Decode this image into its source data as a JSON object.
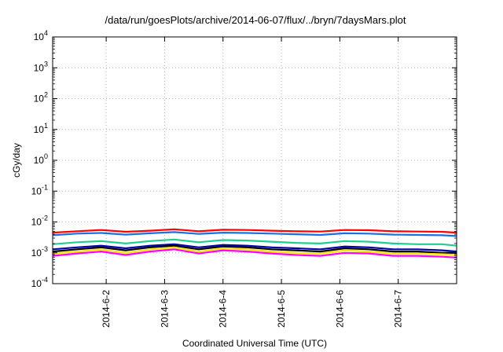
{
  "chart_data": {
    "type": "line",
    "title": "/data/run/goesPlots/archive/2014-06-07/flux/../bryn/7daysMars.plot",
    "xlabel": "Coordinated Universal Time (UTC)",
    "ylabel": "cGy/day",
    "yscale": "log",
    "ylim": [
      0.0001,
      10000
    ],
    "y_ticks": [
      {
        "base": "10",
        "exp": "-4",
        "value": 0.0001
      },
      {
        "base": "10",
        "exp": "-3",
        "value": 0.001
      },
      {
        "base": "10",
        "exp": "-2",
        "value": 0.01
      },
      {
        "base": "10",
        "exp": "-1",
        "value": 0.1
      },
      {
        "base": "10",
        "exp": "0",
        "value": 1
      },
      {
        "base": "10",
        "exp": "1",
        "value": 10
      },
      {
        "base": "10",
        "exp": "2",
        "value": 100
      },
      {
        "base": "10",
        "exp": "3",
        "value": 1000
      },
      {
        "base": "10",
        "exp": "4",
        "value": 10000
      }
    ],
    "xlim": [
      "2014-06-01 02:00",
      "2014-06-08 00:00"
    ],
    "x_ticks": [
      {
        "label": "2014-6-2",
        "value": "2014-06-02 00:00"
      },
      {
        "label": "2014-6-3",
        "value": "2014-06-03 00:00"
      },
      {
        "label": "2014-6-4",
        "value": "2014-06-04 00:00"
      },
      {
        "label": "2014-6-5",
        "value": "2014-06-05 00:00"
      },
      {
        "label": "2014-6-6",
        "value": "2014-06-06 00:00"
      },
      {
        "label": "2014-6-7",
        "value": "2014-06-07 00:00"
      }
    ],
    "grid": true,
    "x": [
      "2014-06-01 02:00",
      "2014-06-01 12:00",
      "2014-06-01 22:00",
      "2014-06-02 08:00",
      "2014-06-02 18:00",
      "2014-06-03 04:00",
      "2014-06-03 14:00",
      "2014-06-04 00:00",
      "2014-06-04 10:00",
      "2014-06-04 20:00",
      "2014-06-05 06:00",
      "2014-06-05 16:00",
      "2014-06-06 02:00",
      "2014-06-06 12:00",
      "2014-06-06 22:00",
      "2014-06-07 08:00",
      "2014-06-07 18:00",
      "2014-06-08 00:00"
    ],
    "series": [
      {
        "color": "#ff0000",
        "values": [
          0.0045,
          0.005,
          0.0055,
          0.0048,
          0.0052,
          0.0058,
          0.005,
          0.0056,
          0.0055,
          0.0052,
          0.005,
          0.0049,
          0.0055,
          0.0054,
          0.005,
          0.0049,
          0.0048,
          0.0045
        ]
      },
      {
        "color": "#1f6fe0",
        "values": [
          0.0037,
          0.0042,
          0.0044,
          0.0039,
          0.0043,
          0.0047,
          0.0041,
          0.0045,
          0.0044,
          0.0042,
          0.004,
          0.0038,
          0.0043,
          0.0042,
          0.0039,
          0.0038,
          0.0037,
          0.0035
        ]
      },
      {
        "color": "#1fcf8f",
        "values": [
          0.0019,
          0.0022,
          0.0024,
          0.002,
          0.0024,
          0.0027,
          0.0022,
          0.0026,
          0.0025,
          0.0023,
          0.0021,
          0.002,
          0.0024,
          0.0023,
          0.002,
          0.0019,
          0.0019,
          0.0017
        ]
      },
      {
        "color": "#0000aa",
        "values": [
          0.0013,
          0.0015,
          0.0017,
          0.0014,
          0.0017,
          0.0019,
          0.0015,
          0.0018,
          0.0017,
          0.0015,
          0.0014,
          0.0013,
          0.0016,
          0.0015,
          0.0013,
          0.0013,
          0.0012,
          0.0011
        ]
      },
      {
        "color": "#000000",
        "values": [
          0.0011,
          0.0013,
          0.0015,
          0.0012,
          0.0015,
          0.0017,
          0.0013,
          0.0016,
          0.0015,
          0.0013,
          0.0012,
          0.0011,
          0.0014,
          0.0013,
          0.0011,
          0.0011,
          0.001,
          0.001
        ]
      },
      {
        "color": "#ffe600",
        "values": [
          0.00095,
          0.0011,
          0.0013,
          0.001,
          0.0013,
          0.0015,
          0.0011,
          0.0014,
          0.0013,
          0.0011,
          0.001,
          0.00095,
          0.0012,
          0.0011,
          0.00095,
          0.00095,
          0.0009,
          0.00085
        ]
      },
      {
        "color": "#ff00ff",
        "values": [
          0.0008,
          0.00095,
          0.0011,
          0.00085,
          0.0011,
          0.0013,
          0.00095,
          0.0012,
          0.0011,
          0.00095,
          0.00085,
          0.0008,
          0.001,
          0.00095,
          0.0008,
          0.0008,
          0.00075,
          0.0007
        ]
      }
    ]
  }
}
